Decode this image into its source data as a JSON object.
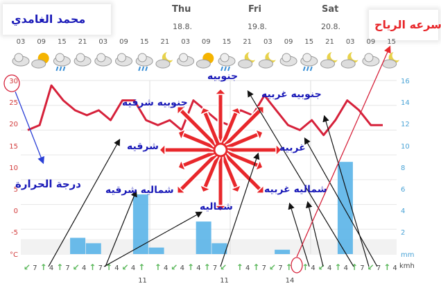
{
  "header": {
    "days": [
      {
        "name": "Thu",
        "date": "18.8."
      },
      {
        "name": "Fri",
        "date": "19.8."
      },
      {
        "name": "Sat",
        "date": "20.8."
      }
    ],
    "hours": [
      "03",
      "09",
      "15",
      "21",
      "03",
      "09",
      "15",
      "21",
      "03",
      "09",
      "15",
      "21",
      "03",
      "09",
      "15",
      "21",
      "03",
      "09",
      "15"
    ]
  },
  "labels": {
    "author": "محمد الغامدي",
    "wind_speed": "سرعه الرياح",
    "temperature": "درجة الحرارة",
    "south": "جنوبيه",
    "southeast": "جنوبيه شرقيه",
    "southwest": "جنوبيه غربيه",
    "east": "شرقيه",
    "west": "غربيه",
    "northeast": "شماليه شرقيه",
    "northwest": "شماليه غربيه",
    "north": "شماليه"
  },
  "axes": {
    "left_ticks": [
      "30",
      "25",
      "20",
      "15",
      "10",
      "5",
      "0",
      "-5",
      "°C"
    ],
    "right_ticks": [
      "16",
      "14",
      "12",
      "10",
      "8",
      "6",
      "4",
      "2",
      "mm"
    ],
    "wind_unit": "kmh"
  },
  "wind_speeds": [
    "7",
    "4",
    "7",
    "4",
    "7",
    "4",
    "4",
    "11",
    "4",
    "4",
    "4",
    "7",
    "11",
    "4",
    "7",
    "7",
    "14",
    "4",
    "4",
    "4",
    "7",
    "7",
    "4"
  ],
  "chart_data": {
    "type": "line",
    "temperature_c": [
      20,
      21,
      29,
      26,
      24,
      23,
      24,
      22,
      26,
      26,
      22,
      21,
      22,
      20,
      26,
      24,
      22,
      21,
      24,
      23,
      27,
      24,
      21,
      20,
      22,
      19,
      22,
      26,
      24,
      21,
      21
    ],
    "precip_mm_bars": [
      {
        "i": 3,
        "mm": 1.5
      },
      {
        "i": 4,
        "mm": 1.0
      },
      {
        "i": 7,
        "mm": 5.5
      },
      {
        "i": 8,
        "mm": 0.6
      },
      {
        "i": 11,
        "mm": 3.0
      },
      {
        "i": 12,
        "mm": 1.0
      },
      {
        "i": 16,
        "mm": 0.4
      },
      {
        "i": 20,
        "mm": 8.5
      }
    ],
    "ylim_temp": [
      -5,
      30
    ],
    "ylim_mm": [
      0,
      16
    ]
  },
  "colors": {
    "temp_line": "#d6213a",
    "annotation_text": "#1a1ab8",
    "compass": "#e8272b",
    "precip_bar": "#5ab4e8",
    "wind_arrow": "#5cb85c",
    "highlight": "#d6213a"
  }
}
